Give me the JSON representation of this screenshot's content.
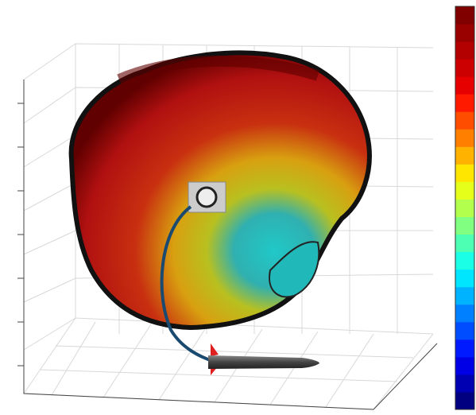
{
  "chart_data": {
    "type": "surface3d",
    "colorbar": {
      "colors": [
        "#800000",
        "#990000",
        "#b30000",
        "#cc0000",
        "#e60000",
        "#ff1a00",
        "#ff4d00",
        "#ff8000",
        "#ffb300",
        "#ffe600",
        "#e6ff1a",
        "#b3ff4d",
        "#80ff80",
        "#4dffb3",
        "#1affe6",
        "#00e6ff",
        "#00b3ff",
        "#0080ff",
        "#004dff",
        "#001aff",
        "#0000e6",
        "#0000b3",
        "#000080"
      ]
    }
  }
}
